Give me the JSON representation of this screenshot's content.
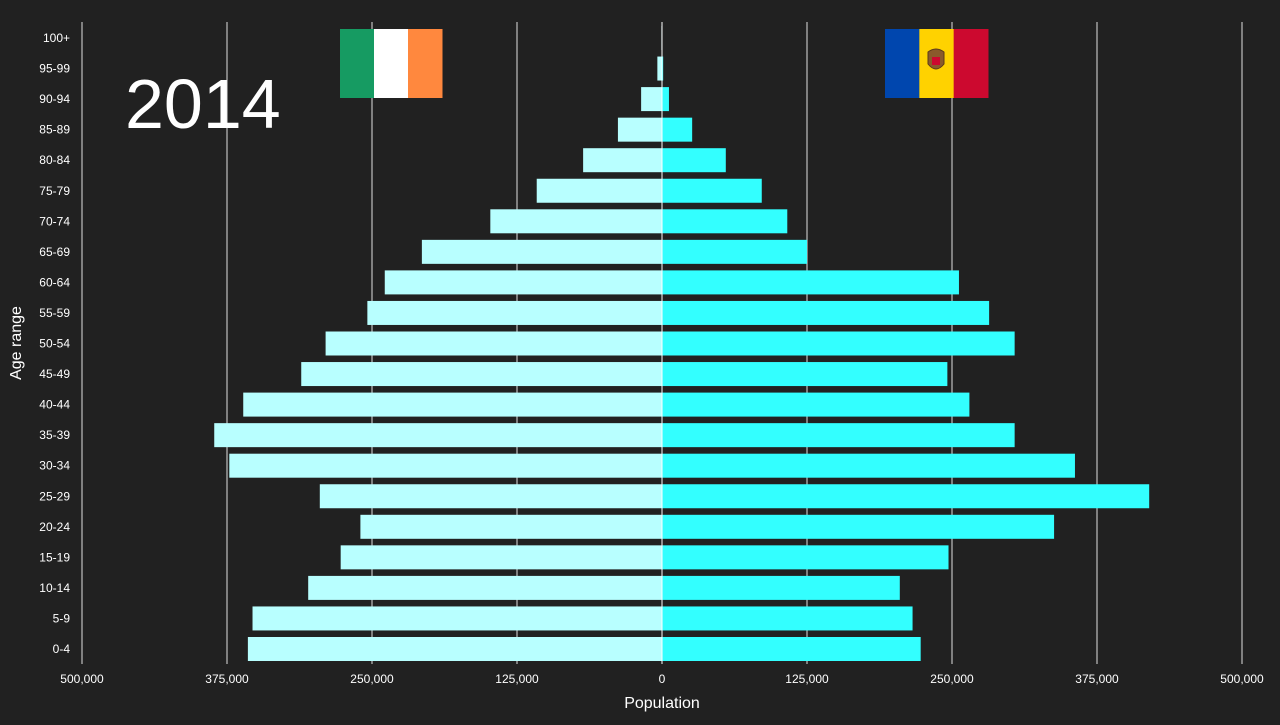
{
  "year_label": "2014",
  "colors": {
    "background": "#212121",
    "grid": "#ffffff",
    "text": "#ffffff",
    "left_bar": "#b8ffff",
    "right_bar": "#33ffff"
  },
  "flags": {
    "left": {
      "name": "ireland-flag-icon",
      "stripes": [
        "#169b62",
        "#ffffff",
        "#ff883e"
      ],
      "orientation": "vertical"
    },
    "right": {
      "name": "moldova-flag-icon",
      "stripes": [
        "#0046ae",
        "#ffd200",
        "#cc092f"
      ],
      "orientation": "vertical"
    }
  },
  "chart_data": {
    "type": "bar",
    "orientation": "horizontal-diverging",
    "xlabel": "Population",
    "ylabel": "Age range",
    "xlim": [
      -500000,
      500000
    ],
    "x_ticks": [
      -500000,
      -375000,
      -250000,
      -125000,
      0,
      125000,
      250000,
      375000,
      500000
    ],
    "x_tick_labels": [
      "500,000",
      "375,000",
      "250,000",
      "125,000",
      "0",
      "125,000",
      "250,000",
      "375,000",
      "500,000"
    ],
    "grid": "vertical",
    "categories": [
      "0-4",
      "5-9",
      "10-14",
      "15-19",
      "20-24",
      "25-29",
      "30-34",
      "35-39",
      "40-44",
      "45-49",
      "50-54",
      "55-59",
      "60-64",
      "65-69",
      "70-74",
      "75-79",
      "80-84",
      "85-89",
      "90-94",
      "95-99",
      "100+"
    ],
    "series": [
      {
        "side": "left",
        "values": [
          357000,
          353000,
          305000,
          277000,
          260000,
          295000,
          373000,
          386000,
          361000,
          311000,
          290000,
          254000,
          239000,
          207000,
          148000,
          108000,
          68000,
          38000,
          18000,
          4000,
          500
        ]
      },
      {
        "side": "right",
        "values": [
          223000,
          216000,
          205000,
          247000,
          338000,
          420000,
          356000,
          304000,
          265000,
          246000,
          304000,
          282000,
          256000,
          125000,
          108000,
          86000,
          55000,
          26000,
          6000,
          1000,
          100
        ]
      }
    ]
  }
}
